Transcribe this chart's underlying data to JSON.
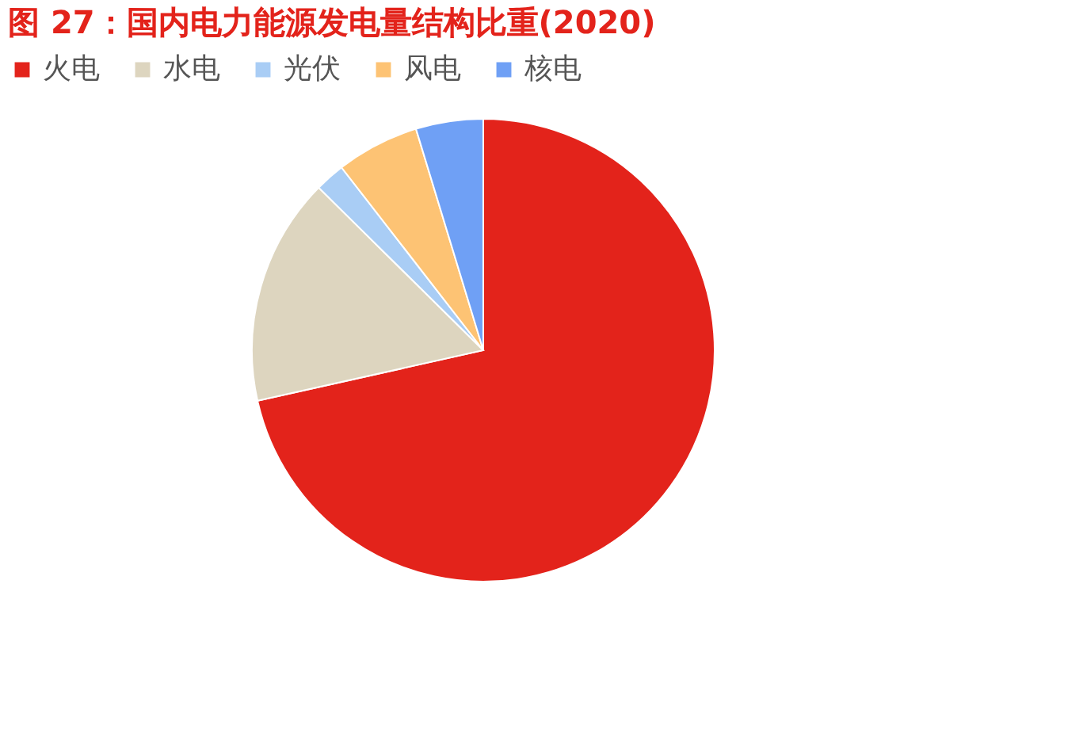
{
  "chart_data": {
    "type": "pie",
    "title": "图 27：国内电力能源发电量结构比重(2020)",
    "categories": [
      "火电",
      "水电",
      "光伏",
      "风电",
      "核电"
    ],
    "values": [
      71.5,
      15.9,
      2.1,
      5.8,
      4.7
    ],
    "colors": [
      "#e3231b",
      "#ddd5bf",
      "#a9cdf5",
      "#fdc374",
      "#6fa0f5"
    ],
    "legend": "top"
  }
}
